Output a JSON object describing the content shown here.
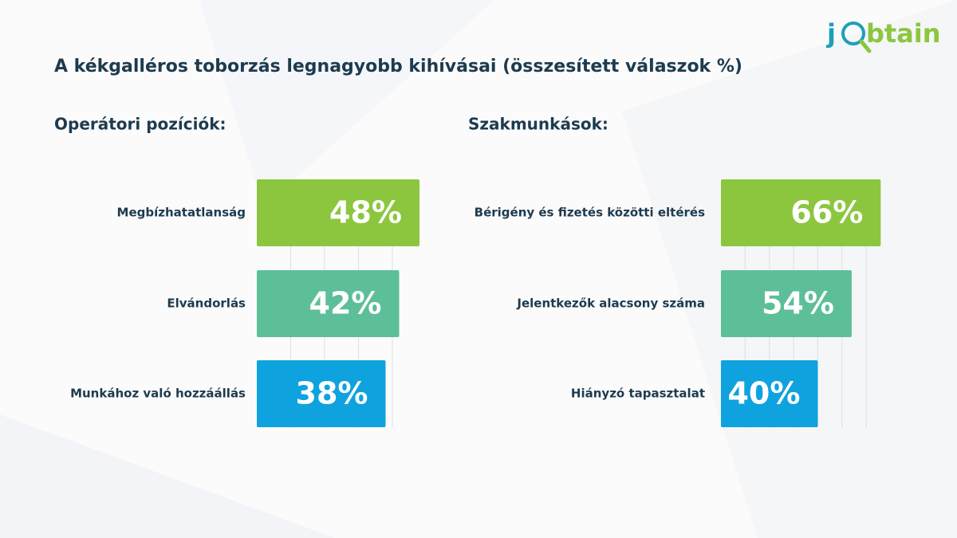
{
  "logo": {
    "parts": [
      "j",
      "btain"
    ]
  },
  "title": "A kékgalléros toborzás legnagyobb kihívásai (összesített válaszok %)",
  "chart_data": [
    {
      "type": "bar",
      "title": "Operátori pozíciók:",
      "categories": [
        "Megbízhatatlanság",
        "Elvándorlás",
        "Munkához való hozzáállás"
      ],
      "values": [
        48,
        42,
        38
      ],
      "value_labels": [
        "48%",
        "42%",
        "38%"
      ],
      "colors": [
        "#8cc63f",
        "#5dbf98",
        "#0ea3de"
      ],
      "xlim": [
        0,
        50
      ],
      "xticks": [
        10,
        20,
        30,
        40
      ],
      "grid": true
    },
    {
      "type": "bar",
      "title": "Szakmunkások:",
      "categories": [
        "Bérigény és fizetés közötti eltérés",
        "Jelentkezők alacsony száma",
        "Hiányzó tapasztalat"
      ],
      "values": [
        66,
        54,
        40
      ],
      "value_labels": [
        "66%",
        "54%",
        "40%"
      ],
      "colors": [
        "#8cc63f",
        "#5dbf98",
        "#0ea3de"
      ],
      "xlim": [
        0,
        70
      ],
      "xticks": [
        10,
        20,
        30,
        40,
        50,
        60
      ],
      "grid": true
    }
  ]
}
